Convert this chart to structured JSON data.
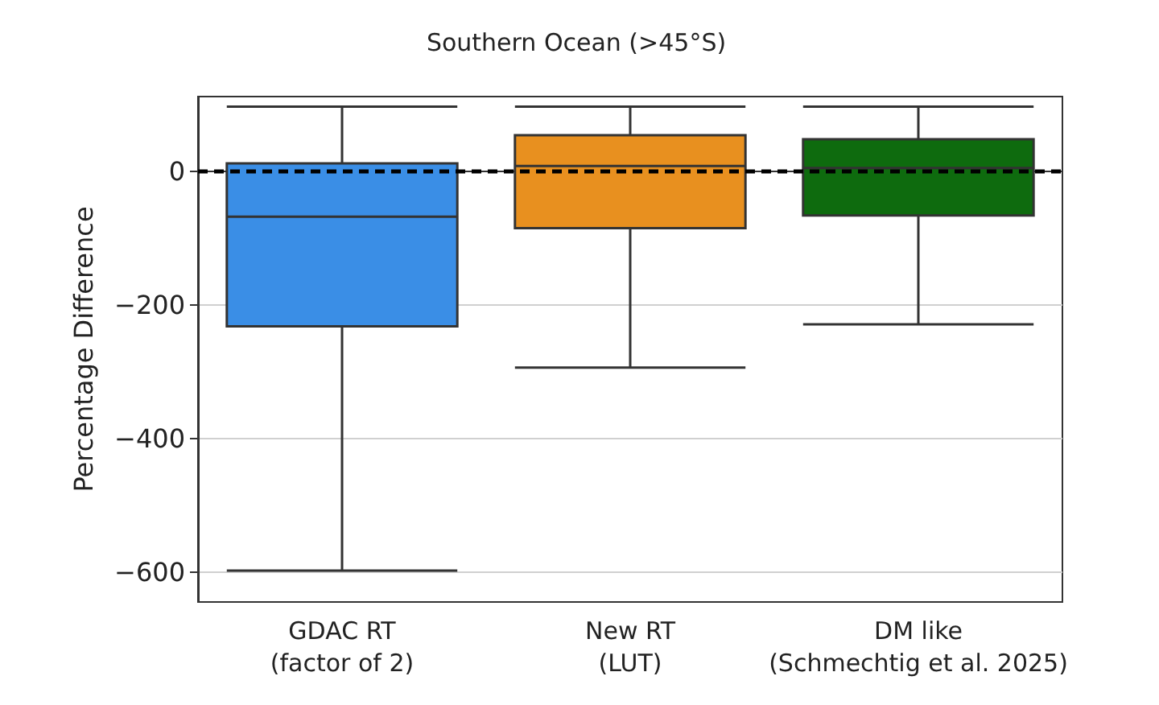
{
  "chart_data": {
    "type": "box",
    "title": "Southern Ocean (>45°S)",
    "ylabel": "Percentage Difference",
    "categories": [
      "GDAC RT\n(factor of 2)",
      "New RT\n(LUT)",
      "DM like\n(Schmechtig et al. 2025)"
    ],
    "boxes": [
      {
        "low": -598,
        "q1": -232,
        "median": -68,
        "q3": 12,
        "high": 97
      },
      {
        "low": -294,
        "q1": -85,
        "median": 8,
        "q3": 54,
        "high": 97
      },
      {
        "low": -229,
        "q1": -66,
        "median": 5,
        "q3": 48,
        "high": 97
      }
    ],
    "colors": [
      "#3a8ee6",
      "#e8901f",
      "#0e6b0e"
    ],
    "ylim": [
      -645,
      112
    ],
    "yticks": [
      -600,
      -400,
      -200,
      0
    ],
    "grid": "y",
    "ref_lines": [
      {
        "axis": "y",
        "value": 0,
        "color": "#000000",
        "line_style": "dashed"
      }
    ]
  }
}
